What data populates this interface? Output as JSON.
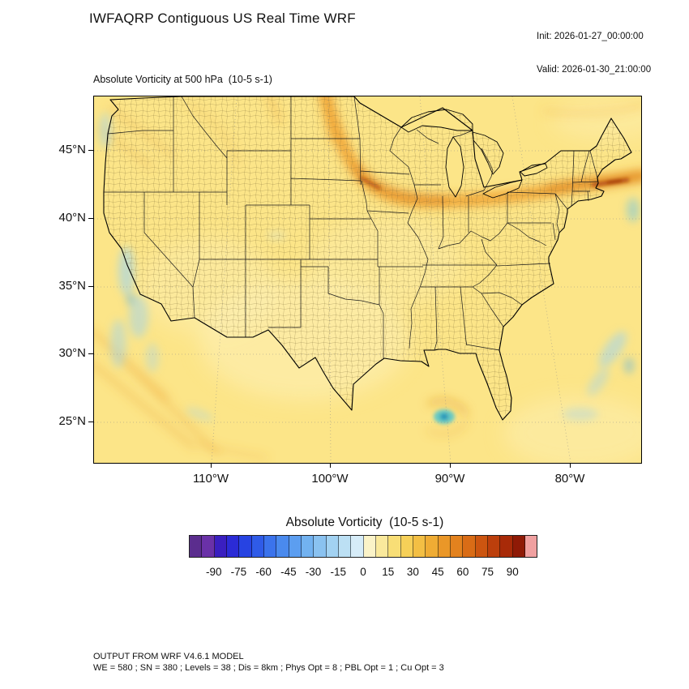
{
  "header": {
    "title": "IWFAQRP Contiguous US Real Time WRF",
    "init": "Init: 2026-01-27_00:00:00",
    "valid": "Valid: 2026-01-30_21:00:00"
  },
  "map": {
    "subtitle": "Absolute Vorticity at 500 hPa  (10-5 s-1)",
    "lat_labels": [
      "45°N",
      "40°N",
      "35°N",
      "30°N",
      "25°N"
    ],
    "lon_labels": [
      "110°W",
      "100°W",
      "90°W",
      "80°W"
    ]
  },
  "colorbar": {
    "title": "Absolute Vorticity  (10-5 s-1)",
    "tick_labels": [
      "-90",
      "-75",
      "-60",
      "-45",
      "-30",
      "-15",
      "0",
      "15",
      "30",
      "45",
      "60",
      "75",
      "90"
    ],
    "colors": [
      "#5B2D8E",
      "#6A31A8",
      "#3A1FC0",
      "#2B2BD6",
      "#2743E2",
      "#2F5BE8",
      "#3B73EC",
      "#4A8AEE",
      "#5C9EF0",
      "#72B2F0",
      "#8AC2F0",
      "#A2D2F2",
      "#BCE0F4",
      "#D6ECF8",
      "#FBF3C8",
      "#FAE99C",
      "#F8DE76",
      "#F6D058",
      "#F3BF44",
      "#EFAC34",
      "#EA9728",
      "#E3821E",
      "#D96C16",
      "#CC5510",
      "#BC3F0C",
      "#A82A08",
      "#8F1A06",
      "#F0A0A0"
    ]
  },
  "footer": {
    "line1": "OUTPUT FROM WRF V4.6.1 MODEL",
    "line2": "WE = 580 ; SN = 380 ; Levels = 38 ; Dis = 8km ; Phys Opt = 8 ; PBL Opt = 1 ; Cu Opt = 3"
  },
  "field_colors": {
    "base": "#FCE588",
    "cream": "#FDF0B8",
    "orange": "#EFA02C",
    "orange_dark": "#D97B16",
    "red_core": "#B04508",
    "blue": "#A5D5E8",
    "blue_deep": "#6FB8DC",
    "teal": "#4FC4CE"
  },
  "chart_data": {
    "type": "heatmap",
    "title": "Absolute Vorticity at 500 hPa (10-5 s-1)",
    "units": "10-5 s-1",
    "level": "500 hPa",
    "region": "Contiguous US",
    "legend_position": "bottom",
    "colorbar_ticks": [
      -90,
      -75,
      -60,
      -45,
      -30,
      -15,
      0,
      15,
      30,
      45,
      60,
      75,
      90
    ],
    "lat_ticks": [
      45,
      40,
      35,
      30,
      25
    ],
    "lon_ticks": [
      -110,
      -100,
      -90,
      -80
    ],
    "notable_features": [
      "Elongated positive vorticity band (30-75) arcing from Montana/North Dakota southeast across Minnesota/Iowa then east over the Great Lakes into New England",
      "Strongest dark-red core (>75) over the Northeast / New England coast",
      "Background field mostly 0-15 (pale yellow) across the CONUS",
      "Weak negative patches (blue, -15 to -45) off the California coast, in the Gulf of Mexico, and off the Southeast Atlantic coast",
      "Diagonal positive streaks over the eastern Pacific in the bottom-left corner"
    ]
  }
}
